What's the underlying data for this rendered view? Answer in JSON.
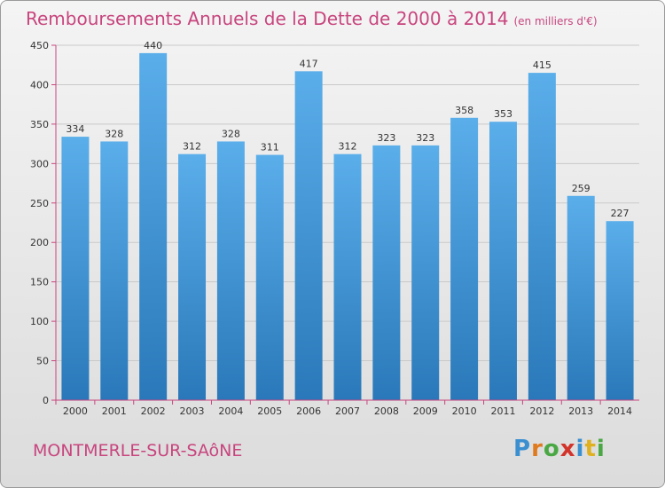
{
  "colors": {
    "title": "#c8457e",
    "bar_top": "#5aaeea",
    "bar_bottom": "#2a78b9",
    "axis": "#c8457e",
    "grid": "#c9c9c9"
  },
  "city": "MONTMERLE-SUR-SAôNE",
  "logo": {
    "letters": [
      {
        "ch": "P",
        "color": "#3a8fd0"
      },
      {
        "ch": "r",
        "color": "#e07a1f"
      },
      {
        "ch": "o",
        "color": "#4aa844"
      },
      {
        "ch": "x",
        "color": "#d2332a"
      },
      {
        "ch": "i",
        "color": "#3a8fd0"
      },
      {
        "ch": "t",
        "color": "#e0b11f"
      },
      {
        "ch": "i",
        "color": "#4aa844"
      }
    ]
  },
  "chart_data": {
    "type": "bar",
    "title": "Remboursements Annuels de la Dette de 2000 à 2014",
    "unit": "(en milliers d'€)",
    "categories": [
      "2000",
      "2001",
      "2002",
      "2003",
      "2004",
      "2005",
      "2006",
      "2007",
      "2008",
      "2009",
      "2010",
      "2011",
      "2012",
      "2013",
      "2014"
    ],
    "values": [
      334,
      328,
      440,
      312,
      328,
      311,
      417,
      312,
      323,
      323,
      358,
      353,
      415,
      259,
      227
    ],
    "ylim": [
      0,
      450
    ],
    "yticks": [
      "0",
      "50",
      "100",
      "150",
      "200",
      "250",
      "300",
      "350",
      "400",
      "450"
    ],
    "grid": true,
    "legend": "none"
  }
}
